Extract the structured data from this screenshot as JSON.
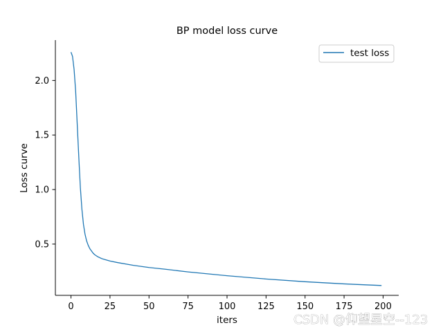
{
  "chart_data": {
    "type": "line",
    "title": "BP model loss curve",
    "xlabel": "iters",
    "ylabel": "Loss curve",
    "xlim": [
      -10,
      210
    ],
    "ylim": [
      0.03,
      2.37
    ],
    "xticks": [
      0,
      25,
      50,
      75,
      100,
      125,
      150,
      175,
      200
    ],
    "yticks": [
      0.5,
      1.0,
      1.5,
      2.0
    ],
    "xtick_labels": [
      "0",
      "25",
      "50",
      "75",
      "100",
      "125",
      "150",
      "175",
      "200"
    ],
    "ytick_labels": [
      "0.5",
      "1.0",
      "1.5",
      "2.0"
    ],
    "grid": false,
    "legend_position": "top-right",
    "spines": "left-bottom",
    "series": [
      {
        "name": "test loss",
        "color": "#1f77b4",
        "x": [
          0,
          1,
          2,
          3,
          4,
          5,
          6,
          7,
          8,
          9,
          10,
          11,
          12,
          13,
          14,
          15,
          17,
          20,
          25,
          30,
          40,
          50,
          60,
          75,
          100,
          125,
          150,
          175,
          199
        ],
        "y": [
          2.26,
          2.22,
          2.1,
          1.9,
          1.6,
          1.3,
          1.02,
          0.82,
          0.68,
          0.59,
          0.53,
          0.49,
          0.46,
          0.44,
          0.42,
          0.405,
          0.385,
          0.365,
          0.345,
          0.33,
          0.305,
          0.285,
          0.27,
          0.245,
          0.21,
          0.18,
          0.155,
          0.135,
          0.12
        ]
      }
    ]
  },
  "watermark": {
    "text": "CSDN @仰望星空--123"
  }
}
